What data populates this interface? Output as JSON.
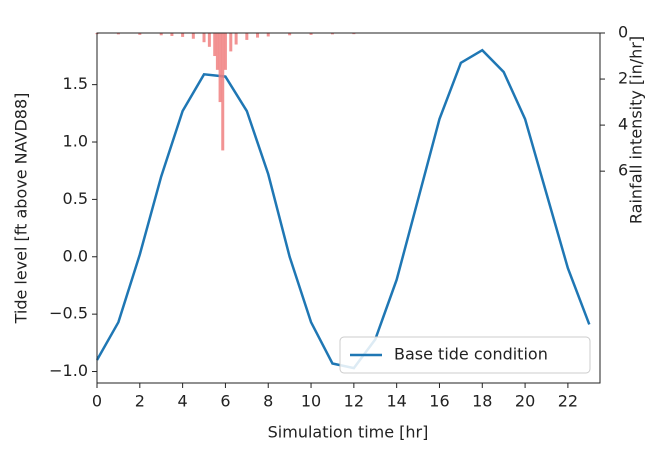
{
  "chart_data": {
    "type": "line",
    "xlabel": "Simulation time [hr]",
    "ylabel": "Tide level [ft above NAVD88]",
    "y2label": "Rainfall intensity [in/hr]",
    "xlim": [
      0,
      23.5
    ],
    "xticks": [
      0,
      2,
      4,
      6,
      8,
      10,
      12,
      14,
      16,
      18,
      20,
      22
    ],
    "ylim": [
      -1.1,
      1.95
    ],
    "yticks": [
      {
        "value": -1,
        "label": "−1.0"
      },
      {
        "value": -0.5,
        "label": "−0.5"
      },
      {
        "value": 0,
        "label": "0.0"
      },
      0.5,
      {
        "value": 1,
        "label": "1.0"
      },
      1.5
    ],
    "y2lim": [
      0,
      15.2
    ],
    "y2ticks": [
      0,
      2,
      4,
      6
    ],
    "y2_inverted": true,
    "legend": "lower right",
    "series": [
      {
        "name": "Base tide condition",
        "color": "#1f77b4",
        "type": "line",
        "x": [
          0,
          1,
          2,
          3,
          4,
          5,
          6,
          7,
          8,
          9,
          10,
          11,
          12,
          13,
          14,
          15,
          16,
          17,
          18,
          19,
          20,
          21,
          22,
          23
        ],
        "values": [
          -0.9,
          -0.57,
          0.02,
          0.7,
          1.27,
          1.59,
          1.57,
          1.27,
          0.72,
          0.0,
          -0.57,
          -0.93,
          -0.97,
          -0.72,
          -0.2,
          0.5,
          1.2,
          1.69,
          1.8,
          1.61,
          1.2,
          0.55,
          -0.1,
          -0.59
        ]
      },
      {
        "color": "#f08080",
        "type": "bar",
        "axis": "y2",
        "x": [
          0,
          1,
          2,
          3,
          3.5,
          4,
          4.5,
          5,
          5.25,
          5.5,
          5.625,
          5.75,
          5.875,
          6,
          6.25,
          6.5,
          7,
          7.5,
          8,
          9,
          10,
          11,
          12
        ],
        "values": [
          0.05,
          0.06,
          0.08,
          0.1,
          0.13,
          0.17,
          0.25,
          0.4,
          0.6,
          1.0,
          1.6,
          3.0,
          5.1,
          1.6,
          0.8,
          0.5,
          0.3,
          0.2,
          0.15,
          0.1,
          0.08,
          0.06,
          0.05
        ]
      }
    ]
  }
}
